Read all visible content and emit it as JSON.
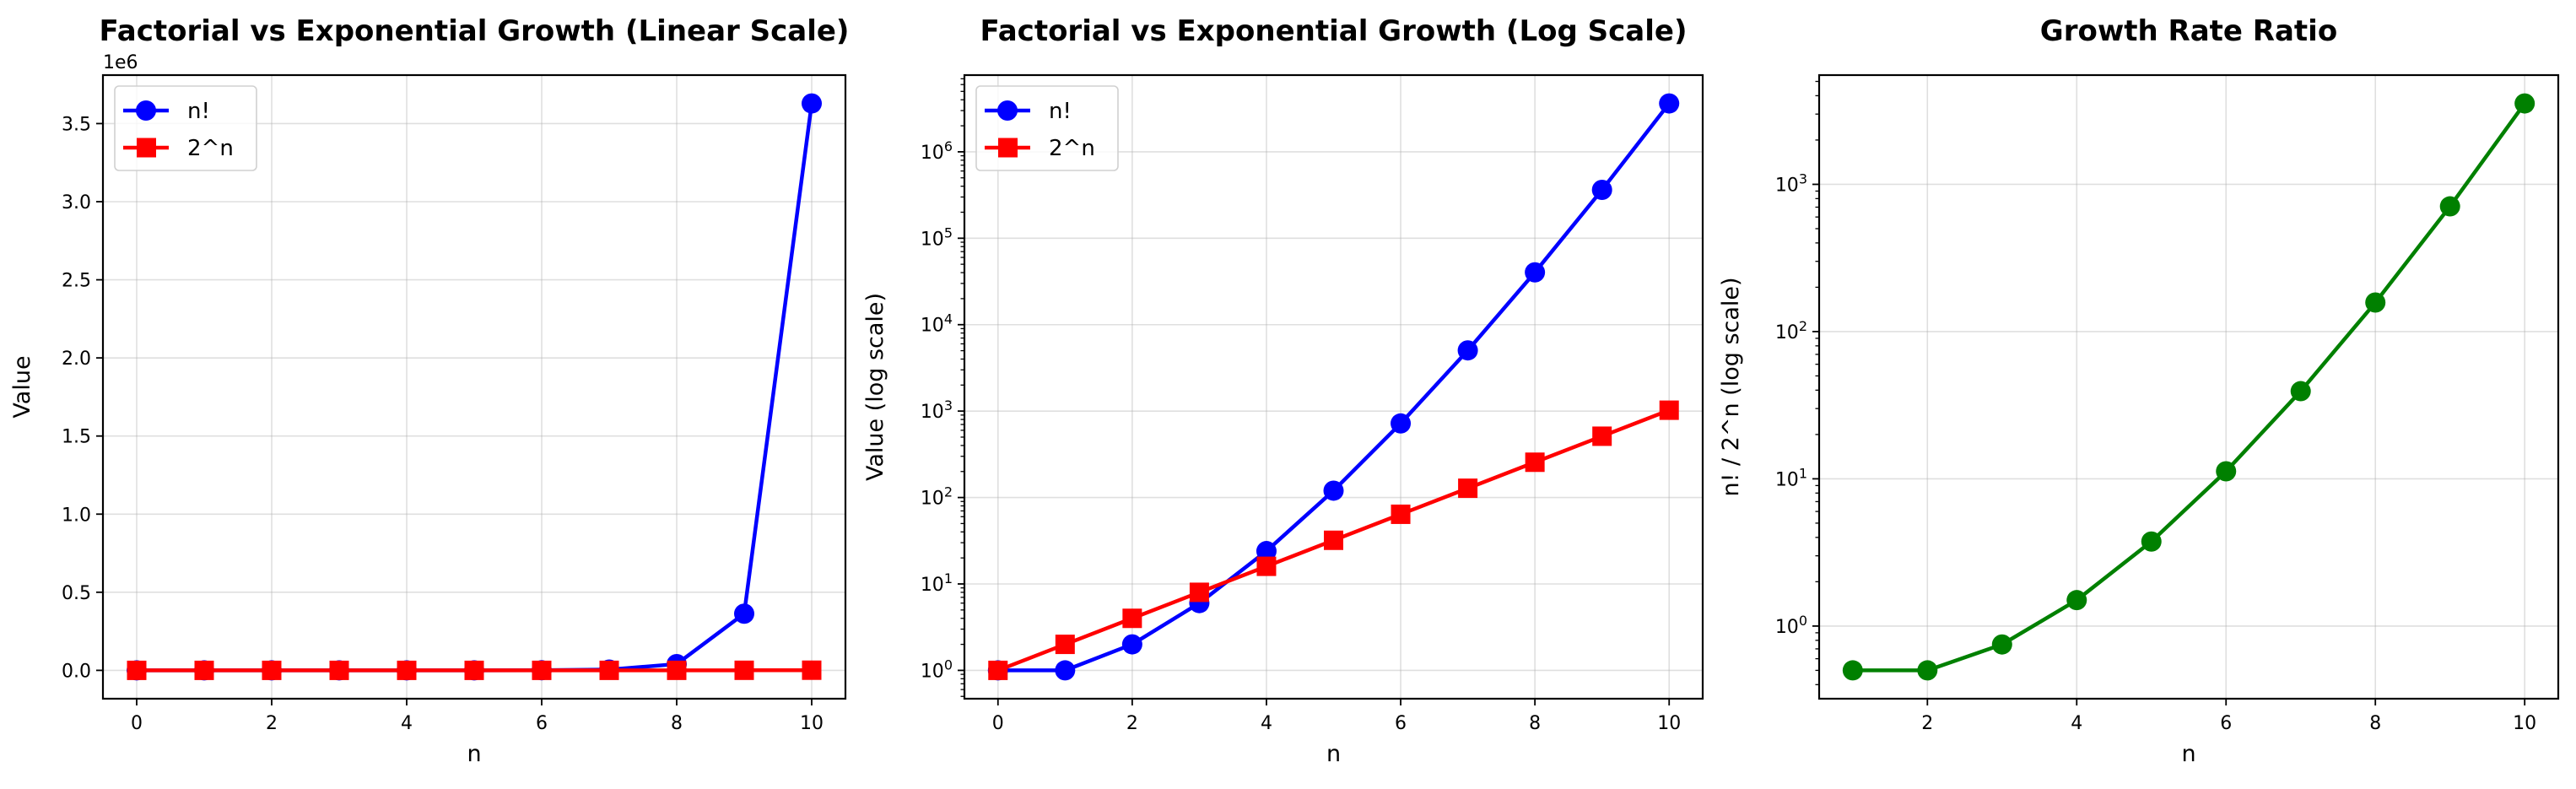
{
  "chart_data": [
    {
      "type": "line",
      "title": "Factorial vs Exponential Growth (Linear Scale)",
      "xlabel": "n",
      "ylabel": "Value",
      "yscale": "linear",
      "offset_label": "1e6",
      "x": [
        0,
        1,
        2,
        3,
        4,
        5,
        6,
        7,
        8,
        9,
        10
      ],
      "xlim": [
        -0.5,
        10.5
      ],
      "xticks": [
        0,
        2,
        4,
        6,
        8,
        10
      ],
      "xticklabels": [
        "0",
        "2",
        "4",
        "6",
        "8",
        "10"
      ],
      "ylim": [
        -181440,
        3810240
      ],
      "yticks": [
        0,
        500000,
        1000000,
        1500000,
        2000000,
        2500000,
        3000000,
        3500000
      ],
      "yticklabels": [
        "0.0",
        "0.5",
        "1.0",
        "1.5",
        "2.0",
        "2.5",
        "3.0",
        "3.5"
      ],
      "grid": true,
      "legend": "top-left",
      "series": [
        {
          "name": "n!",
          "color": "#0000ff",
          "marker": "circle",
          "values": [
            1,
            1,
            2,
            6,
            24,
            120,
            720,
            5040,
            40320,
            362880,
            3628800
          ]
        },
        {
          "name": "2^n",
          "color": "#ff0000",
          "marker": "square",
          "values": [
            1,
            2,
            4,
            8,
            16,
            32,
            64,
            128,
            256,
            512,
            1024
          ]
        }
      ]
    },
    {
      "type": "line",
      "title": "Factorial vs Exponential Growth (Log Scale)",
      "xlabel": "n",
      "ylabel": "Value (log scale)",
      "yscale": "log",
      "x": [
        0,
        1,
        2,
        3,
        4,
        5,
        6,
        7,
        8,
        9,
        10
      ],
      "xlim": [
        -0.5,
        10.5
      ],
      "xticks": [
        0,
        2,
        4,
        6,
        8,
        10
      ],
      "xticklabels": [
        "0",
        "2",
        "4",
        "6",
        "8",
        "10"
      ],
      "ylim": [
        0.47,
        7720000
      ],
      "yticks": [
        1,
        10,
        100,
        1000,
        10000,
        100000,
        1000000
      ],
      "yticklabels": [
        "10^0",
        "10^1",
        "10^2",
        "10^3",
        "10^4",
        "10^5",
        "10^6"
      ],
      "grid": true,
      "legend": "top-left",
      "series": [
        {
          "name": "n!",
          "color": "#0000ff",
          "marker": "circle",
          "values": [
            1,
            1,
            2,
            6,
            24,
            120,
            720,
            5040,
            40320,
            362880,
            3628800
          ]
        },
        {
          "name": "2^n",
          "color": "#ff0000",
          "marker": "square",
          "values": [
            1,
            2,
            4,
            8,
            16,
            32,
            64,
            128,
            256,
            512,
            1024
          ]
        }
      ]
    },
    {
      "type": "line",
      "title": "Growth Rate Ratio",
      "xlabel": "n",
      "ylabel": "n! / 2^n (log scale)",
      "yscale": "log",
      "x": [
        1,
        2,
        3,
        4,
        5,
        6,
        7,
        8,
        9,
        10
      ],
      "xlim": [
        0.55,
        10.45
      ],
      "xticks": [
        2,
        4,
        6,
        8,
        10
      ],
      "xticklabels": [
        "2",
        "4",
        "6",
        "8",
        "10"
      ],
      "ylim": [
        0.321,
        5520
      ],
      "yticks": [
        1,
        10,
        100,
        1000
      ],
      "yticklabels": [
        "10^0",
        "10^1",
        "10^2",
        "10^3"
      ],
      "grid": true,
      "legend": "none",
      "series": [
        {
          "name": "n!/2^n",
          "color": "#008000",
          "marker": "circle",
          "values": [
            0.5,
            0.5,
            0.75,
            1.5,
            3.75,
            11.25,
            39.375,
            157.5,
            708.75,
            3543.75
          ]
        }
      ]
    }
  ]
}
